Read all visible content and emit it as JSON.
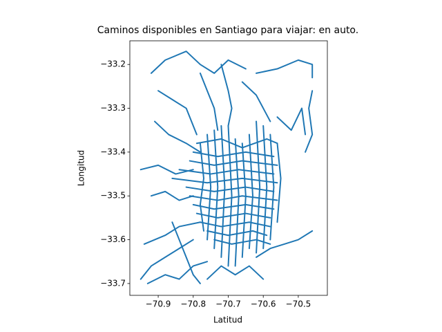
{
  "chart_data": {
    "type": "line",
    "title": "Caminos disponibles en Santiago para viajar: en auto.",
    "x_label": "Latitud",
    "y_label": "Longitud",
    "color": "#1f77b4",
    "xlim": [
      -70.981,
      -70.417
    ],
    "ylim": [
      -33.727,
      -33.146
    ],
    "xticks": [
      {
        "value": -70.9,
        "label": "−70.9"
      },
      {
        "value": -70.8,
        "label": "−70.8"
      },
      {
        "value": -70.7,
        "label": "−70.7"
      },
      {
        "value": -70.6,
        "label": "−70.6"
      },
      {
        "value": -70.5,
        "label": "−70.5"
      }
    ],
    "yticks": [
      {
        "value": -33.2,
        "label": "−33.2"
      },
      {
        "value": -33.3,
        "label": "−33.3"
      },
      {
        "value": -33.4,
        "label": "−33.4"
      },
      {
        "value": -33.5,
        "label": "−33.5"
      },
      {
        "value": -33.6,
        "label": "−33.6"
      },
      {
        "value": -33.7,
        "label": "−33.7"
      }
    ],
    "lines": [
      {
        "x": [
          -70.79,
          -70.72,
          -70.66,
          -70.59,
          -70.56
        ],
        "y": [
          -33.38,
          -33.37,
          -33.39,
          -33.37,
          -33.38
        ]
      },
      {
        "x": [
          -70.8,
          -70.73,
          -70.65,
          -70.57
        ],
        "y": [
          -33.4,
          -33.41,
          -33.4,
          -33.41
        ]
      },
      {
        "x": [
          -70.81,
          -70.74,
          -70.66,
          -70.56
        ],
        "y": [
          -33.42,
          -33.43,
          -33.42,
          -33.43
        ]
      },
      {
        "x": [
          -70.84,
          -70.75,
          -70.67,
          -70.57
        ],
        "y": [
          -33.44,
          -33.45,
          -33.44,
          -33.45
        ]
      },
      {
        "x": [
          -70.86,
          -70.76,
          -70.66,
          -70.56
        ],
        "y": [
          -33.46,
          -33.47,
          -33.46,
          -33.47
        ]
      },
      {
        "x": [
          -70.82,
          -70.74,
          -70.65,
          -70.57
        ],
        "y": [
          -33.48,
          -33.49,
          -33.48,
          -33.49
        ]
      },
      {
        "x": [
          -70.81,
          -70.73,
          -70.66,
          -70.56
        ],
        "y": [
          -33.5,
          -33.51,
          -33.5,
          -33.51
        ]
      },
      {
        "x": [
          -70.8,
          -70.74,
          -70.65,
          -70.57
        ],
        "y": [
          -33.52,
          -33.53,
          -33.52,
          -33.53
        ]
      },
      {
        "x": [
          -70.79,
          -70.73,
          -70.65,
          -70.58
        ],
        "y": [
          -33.54,
          -33.55,
          -33.54,
          -33.55
        ]
      },
      {
        "x": [
          -70.78,
          -70.72,
          -70.64,
          -70.58
        ],
        "y": [
          -33.56,
          -33.57,
          -33.56,
          -33.57
        ]
      },
      {
        "x": [
          -70.76,
          -70.7,
          -70.63,
          -70.59
        ],
        "y": [
          -33.58,
          -33.59,
          -33.58,
          -33.59
        ]
      },
      {
        "x": [
          -70.74,
          -70.69,
          -70.62,
          -70.58
        ],
        "y": [
          -33.6,
          -33.61,
          -33.6,
          -33.61
        ]
      },
      {
        "x": [
          -70.78,
          -70.77,
          -70.78,
          -70.77
        ],
        "y": [
          -33.38,
          -33.46,
          -33.52,
          -33.58
        ]
      },
      {
        "x": [
          -70.76,
          -70.75,
          -70.76
        ],
        "y": [
          -33.36,
          -33.48,
          -33.6
        ]
      },
      {
        "x": [
          -70.74,
          -70.73,
          -70.74
        ],
        "y": [
          -33.35,
          -33.48,
          -33.62
        ]
      },
      {
        "x": [
          -70.72,
          -70.71,
          -70.72
        ],
        "y": [
          -33.34,
          -33.48,
          -33.64
        ]
      },
      {
        "x": [
          -70.7,
          -70.69,
          -70.7
        ],
        "y": [
          -33.34,
          -33.5,
          -33.66
        ]
      },
      {
        "x": [
          -70.68,
          -70.67,
          -70.68
        ],
        "y": [
          -33.37,
          -33.5,
          -33.66
        ]
      },
      {
        "x": [
          -70.66,
          -70.65,
          -70.66
        ],
        "y": [
          -33.38,
          -33.5,
          -33.64
        ]
      },
      {
        "x": [
          -70.64,
          -70.63,
          -70.64
        ],
        "y": [
          -33.36,
          -33.5,
          -33.62
        ]
      },
      {
        "x": [
          -70.62,
          -70.61,
          -70.62
        ],
        "y": [
          -33.33,
          -33.48,
          -33.63
        ]
      },
      {
        "x": [
          -70.6,
          -70.59,
          -70.6
        ],
        "y": [
          -33.34,
          -33.48,
          -33.62
        ]
      },
      {
        "x": [
          -70.58,
          -70.57,
          -70.58
        ],
        "y": [
          -33.36,
          -33.48,
          -33.6
        ]
      },
      {
        "x": [
          -70.56,
          -70.55,
          -70.56
        ],
        "y": [
          -33.38,
          -33.46,
          -33.56
        ]
      },
      {
        "x": [
          -70.92,
          -70.88,
          -70.82,
          -70.78,
          -70.74,
          -70.7,
          -70.65
        ],
        "y": [
          -33.22,
          -33.19,
          -33.17,
          -33.2,
          -33.22,
          -33.19,
          -33.21
        ]
      },
      {
        "x": [
          -70.62,
          -70.56,
          -70.5,
          -70.46,
          -70.46
        ],
        "y": [
          -33.22,
          -33.21,
          -33.19,
          -33.2,
          -33.23
        ]
      },
      {
        "x": [
          -70.46,
          -70.47,
          -70.46,
          -70.48
        ],
        "y": [
          -33.26,
          -33.3,
          -33.36,
          -33.4
        ]
      },
      {
        "x": [
          -70.72,
          -70.7,
          -70.69,
          -70.7
        ],
        "y": [
          -33.2,
          -33.26,
          -33.3,
          -33.34
        ]
      },
      {
        "x": [
          -70.78,
          -70.76,
          -70.74,
          -70.73
        ],
        "y": [
          -33.22,
          -33.26,
          -33.3,
          -33.35
        ]
      },
      {
        "x": [
          -70.9,
          -70.86,
          -70.82,
          -70.79
        ],
        "y": [
          -33.26,
          -33.28,
          -33.3,
          -33.36
        ]
      },
      {
        "x": [
          -70.91,
          -70.87,
          -70.82,
          -70.78
        ],
        "y": [
          -33.33,
          -33.36,
          -33.38,
          -33.4
        ]
      },
      {
        "x": [
          -70.95,
          -70.9,
          -70.85,
          -70.8
        ],
        "y": [
          -33.44,
          -33.43,
          -33.45,
          -33.44
        ]
      },
      {
        "x": [
          -70.92,
          -70.88,
          -70.84,
          -70.8
        ],
        "y": [
          -33.5,
          -33.49,
          -33.51,
          -33.5
        ]
      },
      {
        "x": [
          -70.94,
          -70.88,
          -70.84,
          -70.78
        ],
        "y": [
          -33.61,
          -33.59,
          -33.57,
          -33.56
        ]
      },
      {
        "x": [
          -70.95,
          -70.92,
          -70.88,
          -70.84,
          -70.8
        ],
        "y": [
          -33.69,
          -33.66,
          -33.64,
          -33.62,
          -33.6
        ]
      },
      {
        "x": [
          -70.93,
          -70.88,
          -70.84,
          -70.8,
          -70.76
        ],
        "y": [
          -33.7,
          -33.68,
          -33.69,
          -33.66,
          -33.65
        ]
      },
      {
        "x": [
          -70.76,
          -70.72,
          -70.68,
          -70.64,
          -70.6
        ],
        "y": [
          -33.69,
          -33.66,
          -33.68,
          -33.66,
          -33.69
        ]
      },
      {
        "x": [
          -70.62,
          -70.58,
          -70.54,
          -70.5,
          -70.46
        ],
        "y": [
          -33.64,
          -33.62,
          -33.61,
          -33.6,
          -33.58
        ]
      },
      {
        "x": [
          -70.56,
          -70.52,
          -70.49,
          -70.48
        ],
        "y": [
          -33.32,
          -33.35,
          -33.3,
          -33.36
        ]
      },
      {
        "x": [
          -70.66,
          -70.62,
          -70.6,
          -70.58
        ],
        "y": [
          -33.24,
          -33.27,
          -33.3,
          -33.33
        ]
      },
      {
        "x": [
          -70.86,
          -70.84,
          -70.82,
          -70.8,
          -70.78
        ],
        "y": [
          -33.56,
          -33.6,
          -33.64,
          -33.68,
          -33.7
        ]
      }
    ]
  }
}
